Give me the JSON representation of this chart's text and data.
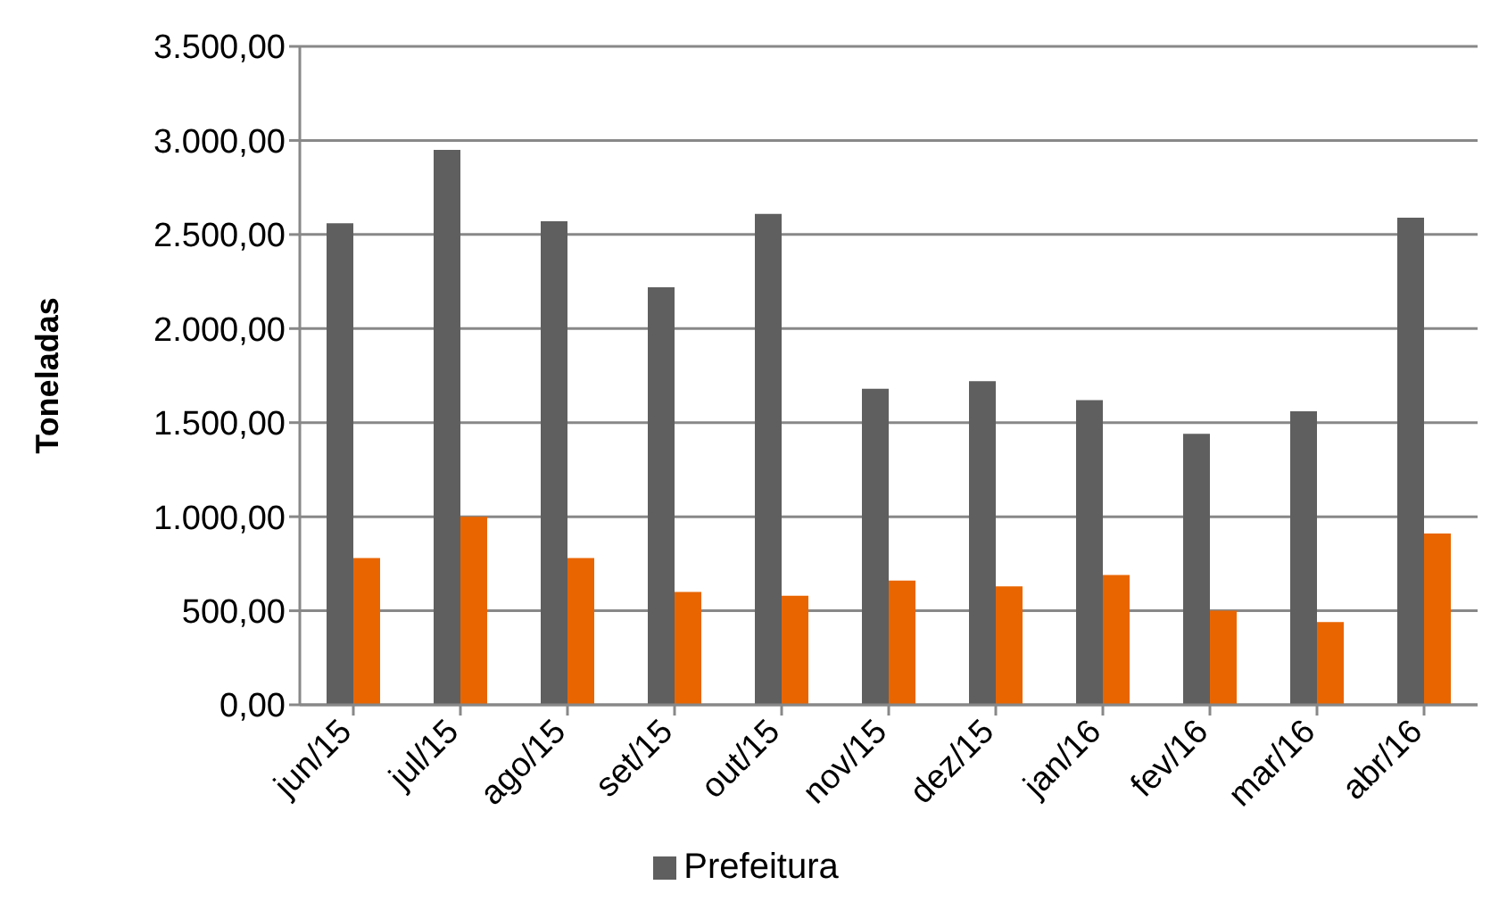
{
  "chart_data": {
    "type": "bar",
    "ylabel": "Toneladas",
    "categories": [
      "jun/15",
      "jul/15",
      "ago/15",
      "set/15",
      "out/15",
      "nov/15",
      "dez/15",
      "jan/16",
      "fev/16",
      "mar/16",
      "abr/16"
    ],
    "series": [
      {
        "name": "Prefeitura",
        "color": "#5f5f5f",
        "values": [
          2560,
          2950,
          2570,
          2220,
          2610,
          1680,
          1720,
          1620,
          1440,
          1560,
          2590
        ]
      },
      {
        "color": "#e96500",
        "values": [
          780,
          1000,
          780,
          600,
          580,
          660,
          630,
          690,
          500,
          440,
          910
        ]
      }
    ],
    "ylim": [
      0,
      3500
    ],
    "yticks": [
      {
        "value": 0,
        "label": "0,00"
      },
      {
        "value": 500,
        "label": "500,00"
      },
      {
        "value": 1000,
        "label": "1.000,00"
      },
      {
        "value": 1500,
        "label": "1.500,00"
      },
      {
        "value": 2000,
        "label": "2.000,00"
      },
      {
        "value": 2500,
        "label": "2.500,00"
      },
      {
        "value": 3000,
        "label": "3.000,00"
      },
      {
        "value": 3500,
        "label": "3.500,00"
      }
    ],
    "grid": "y",
    "legend": "bottom"
  }
}
